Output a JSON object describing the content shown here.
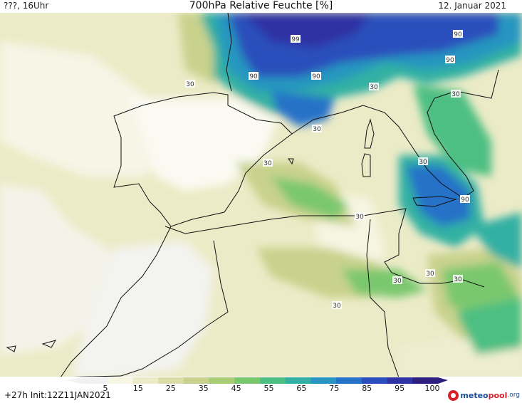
{
  "header": {
    "left": "???, 16Uhr",
    "title": "700hPa Relative Feuchte [%]",
    "date": "12. Januar 2021"
  },
  "footer": {
    "run_info": "+27h  Init:12Z11JAN2021"
  },
  "logo": {
    "part1": "meteo",
    "part2": "pool",
    "part3": ".org"
  },
  "colorbar": {
    "ticks": [
      "5",
      "15",
      "25",
      "35",
      "45",
      "55",
      "65",
      "75",
      "85",
      "95",
      "100"
    ],
    "colors": [
      "#f2f2f2",
      "#f7f6e4",
      "#ecebc7",
      "#dcdca7",
      "#c8d28c",
      "#a8cd73",
      "#7ac86e",
      "#4dbf82",
      "#31b0a3",
      "#2896c0",
      "#2572c8",
      "#2a4fbc",
      "#2f33a3",
      "#2d1f80"
    ]
  },
  "map": {
    "contour_labels": [
      "99",
      "90",
      "90",
      "90",
      "90",
      "30",
      "30",
      "30",
      "30",
      "30",
      "30",
      "30",
      "30",
      "30",
      "90",
      "30",
      "30"
    ]
  }
}
